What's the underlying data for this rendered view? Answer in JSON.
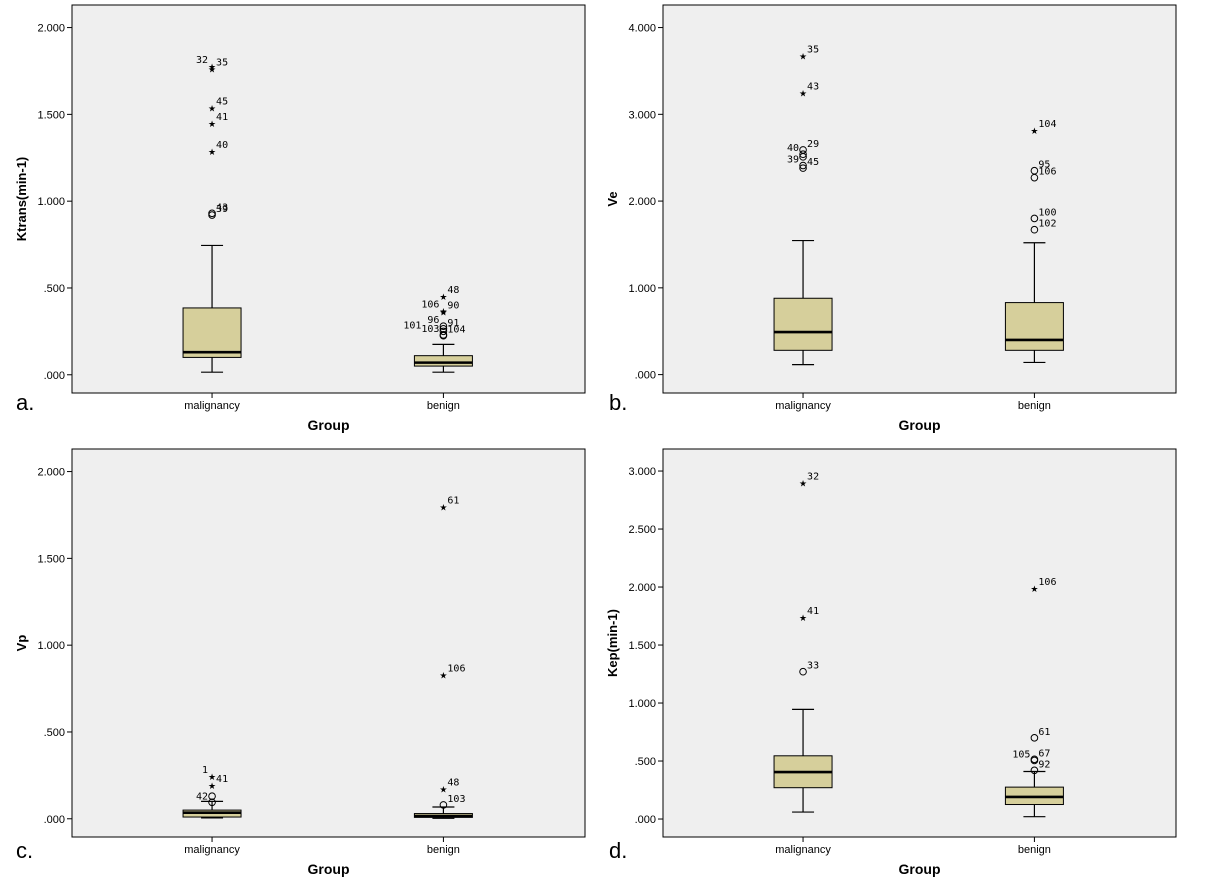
{
  "colors": {
    "plot_background": "#efefef",
    "box_fill": "#d6cf9b",
    "stroke": "#000000"
  },
  "chart_data": [
    {
      "type": "boxplot",
      "panel_label": "a.",
      "xlabel": "Group",
      "ylabel": "Ktrans(min-1)",
      "ylim": [
        -0.105,
        2.13
      ],
      "yticks": [
        0,
        0.5,
        1.0,
        1.5,
        2.0
      ],
      "ytick_labels": [
        ".000",
        ".500",
        "1.000",
        "1.500",
        "2.000"
      ],
      "categories": [
        "malignancy",
        "benign"
      ],
      "boxes": [
        {
          "group": "malignancy",
          "whisker_low": 0.015,
          "q1": 0.1,
          "median": 0.13,
          "q3": 0.385,
          "whisker_high": 0.745,
          "outliers": [
            {
              "v": 1.78,
              "m": "star",
              "label": "32",
              "side": "left"
            },
            {
              "v": 1.765,
              "m": "star",
              "label": "35",
              "side": "right"
            },
            {
              "v": 1.54,
              "m": "star",
              "label": "45",
              "side": "right"
            },
            {
              "v": 1.45,
              "m": "star",
              "label": "41",
              "side": "right"
            },
            {
              "v": 1.29,
              "m": "star",
              "label": "40",
              "side": "right"
            },
            {
              "v": 0.93,
              "m": "circle",
              "label": "43",
              "side": "right"
            },
            {
              "v": 0.92,
              "m": "circle",
              "label": "39",
              "side": "right"
            }
          ]
        },
        {
          "group": "benign",
          "whisker_low": 0.015,
          "q1": 0.05,
          "median": 0.07,
          "q3": 0.11,
          "whisker_high": 0.175,
          "outliers": [
            {
              "v": 0.455,
              "m": "star",
              "label": "48",
              "side": "right"
            },
            {
              "v": 0.37,
              "m": "star",
              "label": "106",
              "side": "left"
            },
            {
              "v": 0.365,
              "m": "star",
              "label": "90",
              "side": "right"
            },
            {
              "v": 0.28,
              "m": "circle",
              "label": "96",
              "side": "left"
            },
            {
              "v": 0.265,
              "m": "circle",
              "label": "91",
              "side": "right"
            },
            {
              "v": 0.25,
              "m": "circle",
              "label": "101",
              "side": "farleft"
            },
            {
              "v": 0.23,
              "m": "circle",
              "label": "103",
              "side": "left"
            },
            {
              "v": 0.225,
              "m": "circle",
              "label": "104",
              "side": "right"
            }
          ]
        }
      ]
    },
    {
      "type": "boxplot",
      "panel_label": "b.",
      "xlabel": "Group",
      "ylabel": "Ve",
      "ylim": [
        -0.212,
        4.26
      ],
      "yticks": [
        0,
        1.0,
        2.0,
        3.0,
        4.0
      ],
      "ytick_labels": [
        ".000",
        "1.000",
        "2.000",
        "3.000",
        "4.000"
      ],
      "categories": [
        "malignancy",
        "benign"
      ],
      "boxes": [
        {
          "group": "malignancy",
          "whisker_low": 0.115,
          "q1": 0.28,
          "median": 0.49,
          "q3": 0.88,
          "whisker_high": 1.545,
          "outliers": [
            {
              "v": 3.68,
              "m": "star",
              "label": "35",
              "side": "right"
            },
            {
              "v": 3.25,
              "m": "star",
              "label": "43",
              "side": "right"
            },
            {
              "v": 2.59,
              "m": "circle",
              "label": "29",
              "side": "right"
            },
            {
              "v": 2.54,
              "m": "circle",
              "label": "40",
              "side": "left"
            },
            {
              "v": 2.51,
              "m": "circle",
              "label": "",
              "side": "right"
            },
            {
              "v": 2.41,
              "m": "circle",
              "label": "39",
              "side": "left"
            },
            {
              "v": 2.38,
              "m": "circle",
              "label": "45",
              "side": "right"
            }
          ]
        },
        {
          "group": "benign",
          "whisker_low": 0.14,
          "q1": 0.28,
          "median": 0.4,
          "q3": 0.83,
          "whisker_high": 1.52,
          "outliers": [
            {
              "v": 2.82,
              "m": "star",
              "label": "104",
              "side": "right"
            },
            {
              "v": 2.35,
              "m": "circle",
              "label": "95",
              "side": "right"
            },
            {
              "v": 2.27,
              "m": "circle",
              "label": "106",
              "side": "right"
            },
            {
              "v": 1.8,
              "m": "circle",
              "label": "100",
              "side": "right"
            },
            {
              "v": 1.67,
              "m": "circle",
              "label": "102",
              "side": "right"
            }
          ]
        }
      ]
    },
    {
      "type": "boxplot",
      "panel_label": "c.",
      "xlabel": "Group",
      "ylabel": "Vp",
      "ylim": [
        -0.105,
        2.13
      ],
      "yticks": [
        0,
        0.5,
        1.0,
        1.5,
        2.0
      ],
      "ytick_labels": [
        ".000",
        ".500",
        "1.000",
        "1.500",
        "2.000"
      ],
      "categories": [
        "malignancy",
        "benign"
      ],
      "boxes": [
        {
          "group": "malignancy",
          "whisker_low": 0.005,
          "q1": 0.01,
          "median": 0.035,
          "q3": 0.05,
          "whisker_high": 0.1,
          "outliers": [
            {
              "v": 0.245,
              "m": "star",
              "label": "1",
              "side": "left"
            },
            {
              "v": 0.195,
              "m": "star",
              "label": "41",
              "side": "right"
            },
            {
              "v": 0.13,
              "m": "circle",
              "label": "",
              "side": "right"
            },
            {
              "v": 0.095,
              "m": "circle",
              "label": "42",
              "side": "left"
            }
          ]
        },
        {
          "group": "benign",
          "whisker_low": 0.003,
          "q1": 0.008,
          "median": 0.016,
          "q3": 0.03,
          "whisker_high": 0.068,
          "outliers": [
            {
              "v": 1.8,
              "m": "star",
              "label": "61",
              "side": "right"
            },
            {
              "v": 0.83,
              "m": "star",
              "label": "106",
              "side": "right"
            },
            {
              "v": 0.175,
              "m": "star",
              "label": "48",
              "side": "right"
            },
            {
              "v": 0.08,
              "m": "circle",
              "label": "103",
              "side": "right"
            }
          ]
        }
      ]
    },
    {
      "type": "boxplot",
      "panel_label": "d.",
      "xlabel": "Group",
      "ylabel": "Kep(min-1)",
      "ylim": [
        -0.155,
        3.19
      ],
      "yticks": [
        0,
        0.5,
        1.0,
        1.5,
        2.0,
        2.5,
        3.0
      ],
      "ytick_labels": [
        ".000",
        ".500",
        "1.000",
        "1.500",
        "2.000",
        "2.500",
        "3.000"
      ],
      "categories": [
        "malignancy",
        "benign"
      ],
      "boxes": [
        {
          "group": "malignancy",
          "whisker_low": 0.06,
          "q1": 0.27,
          "median": 0.405,
          "q3": 0.545,
          "whisker_high": 0.945,
          "outliers": [
            {
              "v": 2.9,
              "m": "star",
              "label": "32",
              "side": "right"
            },
            {
              "v": 1.74,
              "m": "star",
              "label": "41",
              "side": "right"
            },
            {
              "v": 1.27,
              "m": "circle",
              "label": "33",
              "side": "right"
            }
          ]
        },
        {
          "group": "benign",
          "whisker_low": 0.02,
          "q1": 0.125,
          "median": 0.19,
          "q3": 0.275,
          "whisker_high": 0.41,
          "outliers": [
            {
              "v": 1.99,
              "m": "star",
              "label": "106",
              "side": "right"
            },
            {
              "v": 0.7,
              "m": "circle",
              "label": "61",
              "side": "right"
            },
            {
              "v": 0.515,
              "m": "circle",
              "label": "67",
              "side": "right"
            },
            {
              "v": 0.505,
              "m": "circle",
              "label": "105",
              "side": "left"
            },
            {
              "v": 0.42,
              "m": "circle",
              "label": "92",
              "side": "right"
            }
          ]
        }
      ]
    }
  ]
}
